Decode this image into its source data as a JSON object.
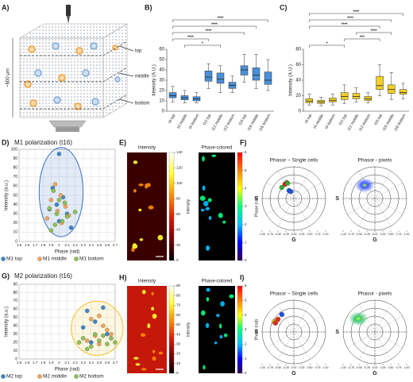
{
  "illustration": {
    "panel": "A)",
    "labels": [
      "top",
      "middle",
      "bottom"
    ],
    "depth": "~600 μm"
  },
  "chart_data": [
    {
      "type": "box",
      "panel": "B)",
      "ylabel": "Intensity (A.U.)",
      "color": "#4a90d9",
      "categories": [
        "t4 top",
        "t4 middle",
        "t4 bottom",
        "t12 top",
        "t12 middle",
        "t12 bottom",
        "t16 top",
        "t16 middle",
        "t16 bottom"
      ],
      "min": [
        9,
        8,
        8,
        22,
        18,
        18,
        28,
        22,
        20
      ],
      "q1": [
        13,
        11,
        10,
        29,
        27,
        22,
        35,
        30,
        26
      ],
      "median": [
        15,
        13,
        12,
        33,
        31,
        25,
        40,
        35,
        30
      ],
      "q3": [
        18,
        15,
        14,
        39,
        37,
        28,
        44,
        42,
        38
      ],
      "max": [
        24,
        20,
        18,
        46,
        44,
        34,
        55,
        55,
        50
      ],
      "ylim": [
        0,
        60
      ],
      "yticks": [
        0,
        10,
        20,
        30,
        40,
        50,
        60
      ],
      "brackets": [
        {
          "from": 1,
          "to": 4,
          "label": "*"
        },
        {
          "from": 0,
          "to": 3,
          "label": "****"
        },
        {
          "from": 0,
          "to": 6,
          "label": "****"
        },
        {
          "from": 0,
          "to": 7,
          "label": "****"
        },
        {
          "from": 0,
          "to": 8,
          "label": "****"
        }
      ]
    },
    {
      "type": "box",
      "panel": "C)",
      "ylabel": "Intensity (A.U.)",
      "color": "#f2d024",
      "categories": [
        "t4 top",
        "t4 middle",
        "t4 bottom",
        "t12 top",
        "t12 middle",
        "t12 bottom",
        "t16 top",
        "t16 middle",
        "t16 bottom"
      ],
      "min": [
        8,
        7,
        8,
        10,
        12,
        11,
        20,
        15,
        16
      ],
      "q1": [
        11,
        10,
        12,
        15,
        16,
        14,
        28,
        23,
        22
      ],
      "median": [
        13,
        12,
        14,
        19,
        19,
        16,
        33,
        28,
        24
      ],
      "q3": [
        16,
        14,
        17,
        24,
        23,
        19,
        45,
        34,
        28
      ],
      "max": [
        22,
        18,
        22,
        34,
        30,
        24,
        60,
        50,
        36
      ],
      "ylim": [
        0,
        80
      ],
      "yticks": [
        0,
        20,
        40,
        60,
        80
      ],
      "brackets": [
        {
          "from": 0,
          "to": 3,
          "label": "*"
        },
        {
          "from": 3,
          "to": 6,
          "label": "***"
        },
        {
          "from": 4,
          "to": 7,
          "label": "****"
        },
        {
          "from": 0,
          "to": 6,
          "label": "****"
        },
        {
          "from": 0,
          "to": 7,
          "label": "****"
        },
        {
          "from": 0,
          "to": 8,
          "label": "****"
        }
      ]
    },
    {
      "type": "scatter",
      "panel": "D)",
      "title": "M1 polarization (t16)",
      "xlabel": "Phase (rad)",
      "ylabel": "Intensity (a.u.)",
      "ellipse_color": "#3a72c8",
      "xlim": [
        1.5,
        2.7
      ],
      "xticks": [
        1.5,
        1.6,
        1.7,
        1.8,
        1.9,
        2,
        2.1,
        2.2,
        2.3,
        2.4,
        2.5,
        2.6,
        2.7
      ],
      "ylim": [
        0,
        100
      ],
      "yticks": [
        0,
        10,
        20,
        30,
        40,
        50,
        60,
        70,
        80,
        90,
        100
      ],
      "grid": true,
      "series": [
        {
          "name": "M1 top",
          "color": "#3a86c8",
          "x": [
            2.0,
            1.92,
            2.05,
            1.97,
            2.1,
            1.88,
            2.0,
            2.15
          ],
          "values": [
            95,
            58,
            48,
            40,
            30,
            35,
            22,
            15
          ]
        },
        {
          "name": "M1 middle",
          "color": "#f2a65a",
          "x": [
            1.95,
            2.02,
            1.9,
            2.08,
            1.98,
            2.12,
            1.85,
            2.03
          ],
          "values": [
            62,
            50,
            45,
            38,
            33,
            28,
            25,
            20
          ]
        },
        {
          "name": "M1 bottom",
          "color": "#8cc152",
          "x": [
            1.93,
            2.0,
            2.07,
            1.88,
            1.97,
            2.1,
            2.04,
            1.95,
            2.2,
            1.9
          ],
          "values": [
            55,
            45,
            42,
            36,
            30,
            27,
            22,
            18,
            32,
            12
          ]
        }
      ]
    },
    {
      "type": "image",
      "panel": "E)",
      "title": "Intensity",
      "cbar_label": "Intensity",
      "background": "#3a0000",
      "colormap": [
        "#000000",
        "#7a0000",
        "#e01a00",
        "#ff8c00",
        "#ffff30",
        "#ffffff"
      ],
      "clim": [
        0,
        140
      ],
      "cticks": [
        0,
        20,
        40,
        60,
        80,
        100,
        120,
        140
      ]
    },
    {
      "type": "image",
      "title": "Phase-colored",
      "cbar_label": "Phase (rad)",
      "background": "#000000",
      "colormap": [
        "#30004a",
        "#0000ff",
        "#00bfff",
        "#00ff7f",
        "#ffff00",
        "#ff7f00",
        "#ff0000"
      ],
      "clim": [
        0,
        6
      ],
      "cticks": [
        0,
        1,
        2,
        3,
        4,
        5,
        6
      ]
    },
    {
      "type": "phasor",
      "panel": "F)",
      "title": "Phasor – Single cells",
      "xlabel": "G",
      "ylabel": "S",
      "xlim": [
        -1,
        1
      ],
      "ylim": [
        -1,
        1
      ],
      "xticks": [
        {
          "value": -1,
          "label": "-1.00"
        },
        {
          "value": -0.75,
          "label": "-0.75"
        },
        {
          "value": -0.5,
          "label": "-0.50"
        },
        {
          "value": -0.25,
          "label": "-0.25"
        },
        {
          "value": 0,
          "label": "0.00"
        },
        {
          "value": 0.25,
          "label": "0.25"
        },
        {
          "value": 0.5,
          "label": "0.50"
        },
        {
          "value": 0.75,
          "label": "0.75"
        },
        {
          "value": 1,
          "label": "1.00"
        }
      ],
      "series": [
        {
          "color": "#e02020",
          "x": [
            -0.28,
            -0.22
          ],
          "values": [
            0.45,
            0.5
          ]
        },
        {
          "color": "#30b030",
          "x": [
            -0.2,
            -0.38
          ],
          "values": [
            0.48,
            0.35
          ]
        },
        {
          "color": "#2050e0",
          "x": [
            -0.15,
            -0.1
          ],
          "values": [
            0.25,
            0.22
          ]
        }
      ]
    },
    {
      "type": "phasor",
      "title": "Phasor - pixels",
      "xlabel": "G",
      "ylabel": "S",
      "xlim": [
        -1,
        1
      ],
      "ylim": [
        -1,
        1
      ],
      "density": true,
      "xticks": [
        {
          "value": -1,
          "label": "-1.00"
        },
        {
          "value": -0.75,
          "label": "-0.75"
        },
        {
          "value": -0.5,
          "label": "-0.50"
        },
        {
          "value": -0.25,
          "label": "-0.25"
        },
        {
          "value": 0,
          "label": "0.00"
        },
        {
          "value": 0.25,
          "label": "0.25"
        },
        {
          "value": 0.5,
          "label": "0.50"
        },
        {
          "value": 0.75,
          "label": "0.75"
        },
        {
          "value": 1,
          "label": "1.00"
        }
      ],
      "series": [
        {
          "color": "#2040ff",
          "x": [
            -0.32
          ],
          "values": [
            0.42
          ]
        }
      ]
    },
    {
      "type": "scatter",
      "panel": "G)",
      "title": "M2 polarization (t16)",
      "xlabel": "Phase (rad)",
      "ylabel": "Intensity (a.u.)",
      "ellipse_color": "#f2c12e",
      "xlim": [
        1.5,
        2.7
      ],
      "xticks": [
        1.5,
        1.6,
        1.7,
        1.8,
        1.9,
        2,
        2.1,
        2.2,
        2.3,
        2.4,
        2.5,
        2.6,
        2.7
      ],
      "ylim": [
        0,
        90
      ],
      "yticks": [
        0,
        10,
        20,
        30,
        40,
        50,
        60,
        70,
        80,
        90
      ],
      "grid": true,
      "series": [
        {
          "name": "M2 top",
          "color": "#3a86c8",
          "x": [
            2.35,
            2.3,
            2.45,
            2.55,
            2.6,
            2.4,
            2.65
          ],
          "values": [
            58,
            38,
            45,
            62,
            30,
            20,
            25
          ]
        },
        {
          "name": "M2 middle",
          "color": "#f2a65a",
          "x": [
            2.4,
            2.5,
            2.55,
            2.6,
            2.45,
            2.35,
            2.65,
            2.5
          ],
          "values": [
            48,
            52,
            40,
            35,
            28,
            22,
            30,
            18
          ]
        },
        {
          "name": "M2 bottom",
          "color": "#8cc152",
          "x": [
            2.25,
            2.3,
            2.4,
            2.45,
            2.5,
            2.55,
            2.6,
            2.65,
            2.35,
            2.7
          ],
          "values": [
            20,
            25,
            15,
            30,
            22,
            28,
            18,
            25,
            12,
            20
          ]
        }
      ]
    },
    {
      "type": "image",
      "panel": "H)",
      "title": "Intensity",
      "cbar_label": "Intensity",
      "background": "#c4180a",
      "colormap": [
        "#000000",
        "#7a0000",
        "#e01a00",
        "#ff8c00",
        "#ffff30",
        "#ffffff"
      ],
      "clim": [
        0,
        90
      ],
      "cticks": [
        0,
        10,
        20,
        30,
        40,
        50,
        60,
        70,
        80,
        90
      ]
    },
    {
      "type": "image",
      "title": "Phase-colored",
      "cbar_label": "Phase (rad)",
      "background": "#000000",
      "colormap": [
        "#30004a",
        "#0000ff",
        "#00bfff",
        "#00ff7f",
        "#ffff00",
        "#ff7f00",
        "#ff0000"
      ],
      "clim": [
        0,
        6
      ],
      "cticks": [
        0,
        1,
        2,
        3,
        4,
        5,
        6
      ]
    },
    {
      "type": "phasor",
      "panel": "I)",
      "title": "Phasor – Single cells",
      "xlabel": "G",
      "ylabel": "S",
      "xlim": [
        -1,
        1
      ],
      "ylim": [
        -1,
        1
      ],
      "xticks": [
        {
          "value": -1,
          "label": "-1.00"
        },
        {
          "value": -0.75,
          "label": "-0.75"
        },
        {
          "value": -0.5,
          "label": "-0.50"
        },
        {
          "value": -0.25,
          "label": "-0.25"
        },
        {
          "value": 0,
          "label": "0.00"
        },
        {
          "value": 0.25,
          "label": "0.25"
        },
        {
          "value": 0.5,
          "label": "0.50"
        },
        {
          "value": 0.75,
          "label": "0.75"
        },
        {
          "value": 1,
          "label": "1.00"
        }
      ],
      "series": [
        {
          "color": "#f0c020",
          "x": [
            -0.62,
            -0.55
          ],
          "values": [
            0.32,
            0.36
          ]
        },
        {
          "color": "#e03020",
          "x": [
            -0.5,
            -0.58
          ],
          "values": [
            0.4,
            0.28
          ]
        },
        {
          "color": "#2050e0",
          "x": [
            -0.38
          ],
          "values": [
            0.55
          ]
        }
      ]
    },
    {
      "type": "phasor",
      "title": "Phasor - pixels",
      "xlabel": "G",
      "ylabel": "S",
      "xlim": [
        -1,
        1
      ],
      "ylim": [
        -1,
        1
      ],
      "density": true,
      "xticks": [
        {
          "value": -1,
          "label": "-1.00"
        },
        {
          "value": -0.75,
          "label": "-0.75"
        },
        {
          "value": -0.5,
          "label": "-0.50"
        },
        {
          "value": -0.25,
          "label": "-0.25"
        },
        {
          "value": 0,
          "label": "0.00"
        },
        {
          "value": 0.25,
          "label": "0.25"
        },
        {
          "value": 0.5,
          "label": "0.50"
        },
        {
          "value": 0.75,
          "label": "0.75"
        },
        {
          "value": 1,
          "label": "1.00"
        }
      ],
      "series": [
        {
          "color": "#20c060",
          "x": [
            -0.52
          ],
          "values": [
            0.42
          ]
        }
      ]
    }
  ]
}
